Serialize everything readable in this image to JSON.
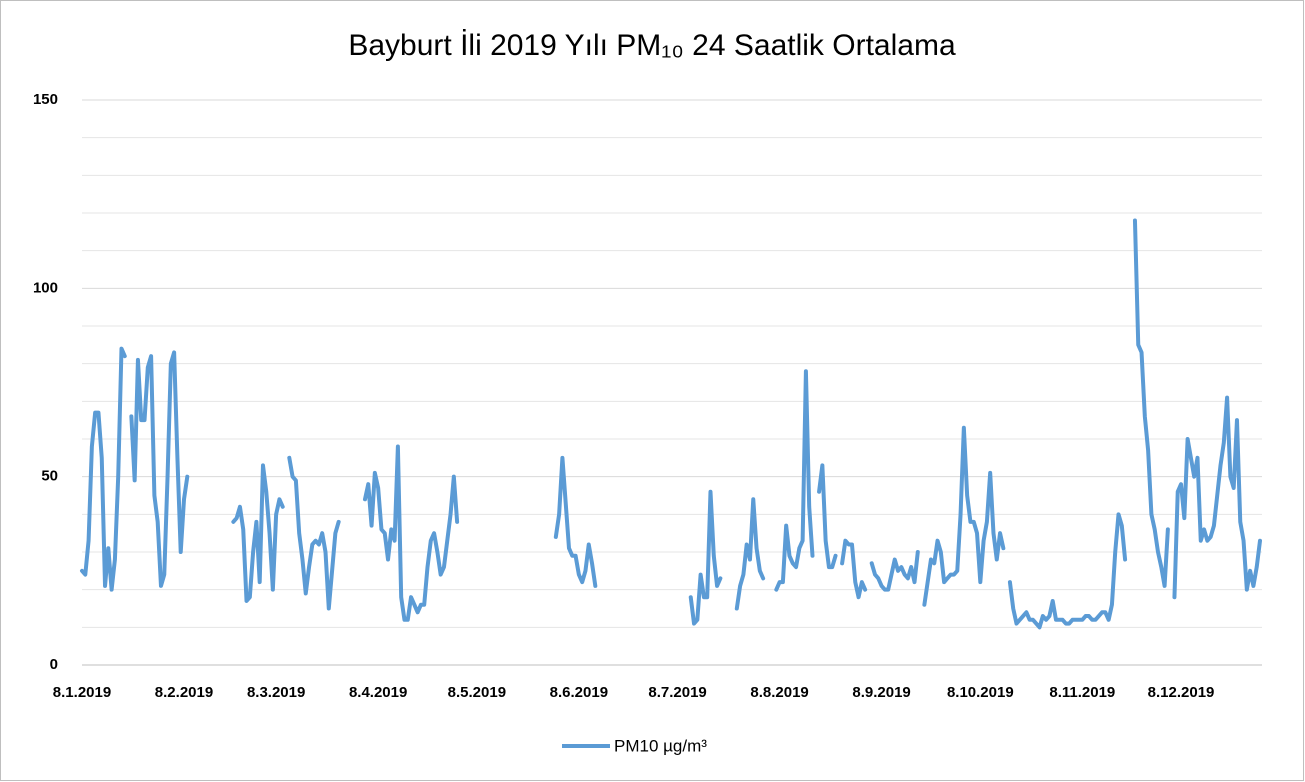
{
  "chart_data": {
    "type": "line",
    "title": "Bayburt İli 2019 Yılı PM₁₀ 24 Saatlik Ortalama",
    "categories": [
      "8.1.2019",
      null,
      null,
      null,
      null,
      null,
      null,
      null,
      null,
      null,
      null,
      null,
      null,
      null,
      null,
      null,
      null,
      null,
      null,
      null,
      null,
      null,
      null,
      null,
      null,
      null,
      null,
      null,
      null,
      null,
      null,
      "8.2.2019",
      null,
      null,
      null,
      null,
      null,
      null,
      null,
      null,
      null,
      null,
      null,
      null,
      null,
      null,
      null,
      null,
      null,
      null,
      null,
      null,
      null,
      null,
      null,
      null,
      null,
      null,
      null,
      "8.3.2019",
      null,
      null,
      null,
      null,
      null,
      null,
      null,
      null,
      null,
      null,
      null,
      null,
      null,
      null,
      null,
      null,
      null,
      null,
      null,
      null,
      null,
      null,
      null,
      null,
      null,
      null,
      null,
      null,
      null,
      null,
      "8.4.2019",
      null,
      null,
      null,
      null,
      null,
      null,
      null,
      null,
      null,
      null,
      null,
      null,
      null,
      null,
      null,
      null,
      null,
      null,
      null,
      null,
      null,
      null,
      null,
      null,
      null,
      null,
      null,
      null,
      null,
      "8.5.2019",
      null,
      null,
      null,
      null,
      null,
      null,
      null,
      null,
      null,
      null,
      null,
      null,
      null,
      null,
      null,
      null,
      null,
      null,
      null,
      null,
      null,
      null,
      null,
      null,
      null,
      null,
      null,
      null,
      null,
      null,
      "8.6.2019",
      null,
      null,
      null,
      null,
      null,
      null,
      null,
      null,
      null,
      null,
      null,
      null,
      null,
      null,
      null,
      null,
      null,
      null,
      null,
      null,
      null,
      null,
      null,
      null,
      null,
      null,
      null,
      null,
      null,
      "8.7.2019",
      null,
      null,
      null,
      null,
      null,
      null,
      null,
      null,
      null,
      null,
      null,
      null,
      null,
      null,
      null,
      null,
      null,
      null,
      null,
      null,
      null,
      null,
      null,
      null,
      null,
      null,
      null,
      null,
      null,
      null,
      "8.8.2019",
      null,
      null,
      null,
      null,
      null,
      null,
      null,
      null,
      null,
      null,
      null,
      null,
      null,
      null,
      null,
      null,
      null,
      null,
      null,
      null,
      null,
      null,
      null,
      null,
      null,
      null,
      null,
      null,
      null,
      null,
      "8.9.2019",
      null,
      null,
      null,
      null,
      null,
      null,
      null,
      null,
      null,
      null,
      null,
      null,
      null,
      null,
      null,
      null,
      null,
      null,
      null,
      null,
      null,
      null,
      null,
      null,
      null,
      null,
      null,
      null,
      null,
      "8.10.2019",
      null,
      null,
      null,
      null,
      null,
      null,
      null,
      null,
      null,
      null,
      null,
      null,
      null,
      null,
      null,
      null,
      null,
      null,
      null,
      null,
      null,
      null,
      null,
      null,
      null,
      null,
      null,
      null,
      null,
      null,
      "8.11.2019",
      null,
      null,
      null,
      null,
      null,
      null,
      null,
      null,
      null,
      null,
      null,
      null,
      null,
      null,
      null,
      null,
      null,
      null,
      null,
      null,
      null,
      null,
      null,
      null,
      null,
      null,
      null,
      null,
      null,
      "8.12.2019",
      null,
      null,
      null,
      null,
      null,
      null,
      null,
      null,
      null,
      null,
      null,
      null,
      null,
      null,
      null,
      null,
      null,
      null,
      null,
      null,
      null,
      null,
      null,
      null
    ],
    "series": [
      {
        "name": "PM10 µg/m³",
        "color": "#5b9bd5",
        "values": [
          25,
          24,
          33,
          58,
          67,
          67,
          55,
          21,
          31,
          20,
          28,
          50,
          84,
          82,
          null,
          66,
          49,
          81,
          65,
          65,
          79,
          82,
          45,
          38,
          21,
          24,
          50,
          80,
          83,
          55,
          30,
          44,
          50,
          null,
          null,
          null,
          null,
          null,
          null,
          null,
          null,
          null,
          null,
          null,
          null,
          null,
          38,
          39,
          42,
          36,
          17,
          18,
          30,
          38,
          22,
          53,
          46,
          35,
          20,
          40,
          44,
          42,
          null,
          55,
          50,
          49,
          35,
          28,
          19,
          26,
          32,
          33,
          32,
          35,
          30,
          15,
          25,
          35,
          38,
          null,
          null,
          null,
          null,
          null,
          null,
          null,
          44,
          48,
          37,
          51,
          47,
          36,
          35,
          28,
          36,
          33,
          58,
          18,
          12,
          12,
          18,
          16,
          14,
          16,
          16,
          26,
          33,
          35,
          30,
          24,
          26,
          33,
          40,
          50,
          38,
          null,
          null,
          null,
          null,
          null,
          null,
          null,
          null,
          null,
          null,
          null,
          null,
          null,
          null,
          null,
          null,
          null,
          null,
          null,
          null,
          null,
          null,
          null,
          null,
          null,
          null,
          null,
          null,
          null,
          34,
          40,
          55,
          43,
          31,
          29,
          29,
          24,
          22,
          25,
          32,
          27,
          21,
          null,
          null,
          null,
          null,
          null,
          null,
          null,
          null,
          null,
          null,
          null,
          null,
          null,
          null,
          null,
          null,
          null,
          null,
          null,
          null,
          null,
          null,
          null,
          null,
          null,
          null,
          null,
          null,
          18,
          11,
          12,
          24,
          18,
          18,
          46,
          29,
          21,
          23,
          null,
          null,
          null,
          null,
          15,
          21,
          24,
          32,
          28,
          44,
          31,
          25,
          23,
          null,
          null,
          null,
          20,
          22,
          22,
          37,
          29,
          27,
          26,
          31,
          33,
          78,
          42,
          29,
          null,
          46,
          53,
          33,
          26,
          26,
          29,
          null,
          27,
          33,
          32,
          32,
          22,
          18,
          22,
          20,
          null,
          27,
          24,
          23,
          21,
          20,
          20,
          24,
          28,
          25,
          26,
          24,
          23,
          26,
          22,
          30,
          null,
          16,
          22,
          28,
          27,
          33,
          30,
          22,
          23,
          24,
          24,
          25,
          40,
          63,
          45,
          38,
          38,
          35,
          22,
          33,
          38,
          51,
          35,
          28,
          35,
          31,
          null,
          22,
          15,
          11,
          12,
          13,
          14,
          12,
          12,
          11,
          10,
          13,
          12,
          13,
          17,
          12,
          12,
          12,
          11,
          11,
          12,
          12,
          12,
          12,
          13,
          13,
          12,
          12,
          13,
          14,
          14,
          12,
          16,
          30,
          40,
          37,
          28,
          null,
          null,
          118,
          85,
          83,
          66,
          57,
          40,
          36,
          30,
          26,
          21,
          36,
          null,
          18,
          46,
          48,
          39,
          60,
          55,
          50,
          55,
          33,
          36,
          33,
          34,
          37,
          45,
          53,
          59,
          71,
          50,
          47,
          65,
          38,
          33,
          20,
          25,
          21,
          26,
          33
        ]
      }
    ],
    "ylim": [
      0,
      150
    ],
    "yticks": [
      0,
      50,
      100,
      150
    ],
    "y_minor_ticks": [
      10,
      20,
      30,
      40,
      60,
      70,
      80,
      90,
      110,
      120,
      130,
      140
    ],
    "grid": true,
    "legend": "bottom"
  }
}
